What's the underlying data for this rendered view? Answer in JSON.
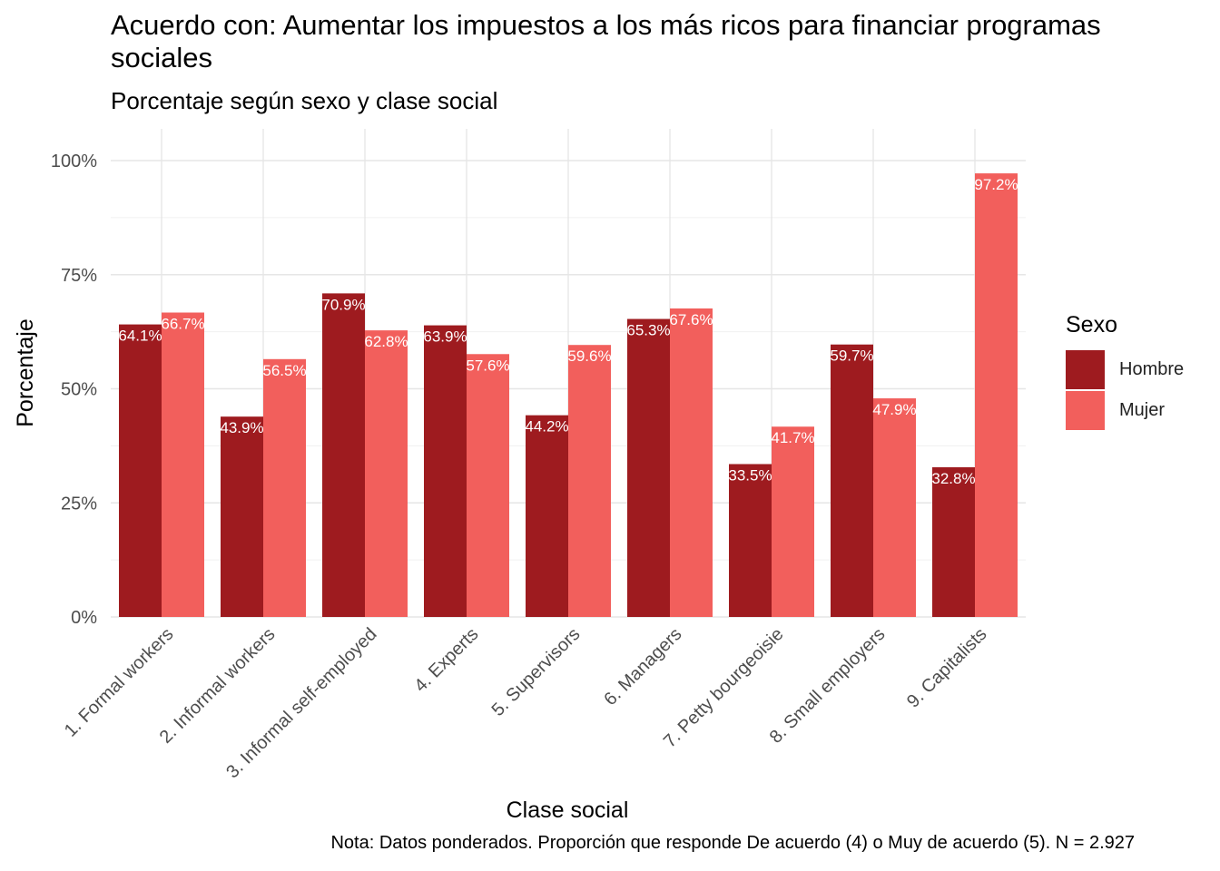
{
  "title": "Acuerdo con: Aumentar los impuestos a los más ricos para financiar programas sociales",
  "subtitle": "Porcentaje según sexo y clase social",
  "caption": "Nota: Datos ponderados. Proporción que responde De acuerdo (4) o Muy de acuerdo (5). N = 2.927",
  "legend": {
    "title": "Sexo",
    "items": [
      {
        "label": "Hombre",
        "color": "#9E1B1F"
      },
      {
        "label": "Mujer",
        "color": "#F25F5C"
      }
    ]
  },
  "chart_data": {
    "type": "bar",
    "xlabel": "Clase social",
    "ylabel": "Porcentaje",
    "ylim": [
      0,
      100
    ],
    "yticks": [
      "0%",
      "25%",
      "50%",
      "75%",
      "100%"
    ],
    "grid": true,
    "legend_position": "right",
    "categories": [
      "1. Formal workers",
      "2. Informal workers",
      "3. Informal self-employed",
      "4. Experts",
      "5. Supervisors",
      "6. Managers",
      "7. Petty bourgeoisie",
      "8. Small employers",
      "9. Capitalists"
    ],
    "series": [
      {
        "name": "Hombre",
        "color": "#9E1B1F",
        "values": [
          64.1,
          43.9,
          70.9,
          63.9,
          44.2,
          65.3,
          33.5,
          59.7,
          32.8
        ],
        "labels": [
          "64.1%",
          "43.9%",
          "70.9%",
          "63.9%",
          "44.2%",
          "65.3%",
          "33.5%",
          "59.7%",
          "32.8%"
        ]
      },
      {
        "name": "Mujer",
        "color": "#F25F5C",
        "values": [
          66.7,
          56.5,
          62.8,
          57.6,
          59.6,
          67.6,
          41.7,
          47.9,
          97.2
        ],
        "labels": [
          "66.7%",
          "56.5%",
          "62.8%",
          "57.6%",
          "59.6%",
          "67.6%",
          "41.7%",
          "47.9%",
          "97.2%"
        ]
      }
    ]
  }
}
